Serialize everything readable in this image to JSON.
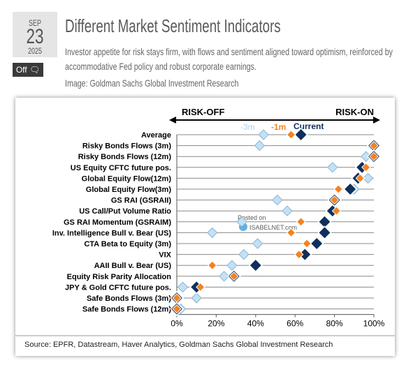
{
  "post": {
    "date": {
      "month": "SEP",
      "day": "23",
      "year": "2025"
    },
    "comments_badge": "Off",
    "comment_icon": "speech-bubbles-icon",
    "title": "Different Market Sentiment Indicators",
    "description": "Investor appetite for risk stays firm, with flows and sentiment aligned toward optimism, reinforced by accommodative Fed policy and robust corporate earnings.",
    "image_credit": "Image: Goldman Sachs Global Investment Research"
  },
  "chart_data": {
    "type": "scatter",
    "header_left": "RISK-OFF",
    "header_right": "RISK-ON",
    "watermark": [
      "Posted on",
      "ISABELNET.com"
    ],
    "source": "Source: EPFR, Datastream, Haver Analytics, Goldman Sachs Global Investment Research",
    "xlim": [
      0,
      100
    ],
    "xticks": [
      "0%",
      "20%",
      "40%",
      "60%",
      "80%",
      "100%"
    ],
    "colors": {
      "current": "#0f2f5c",
      "m1": "#f5821f",
      "m3": "#c2e1f7"
    },
    "legend": {
      "m3": "-3m",
      "m1": "-1m",
      "current": "Current"
    },
    "categories": [
      "Average",
      "Risky Bonds Flows (3m)",
      "Risky Bonds Flows (12m)",
      "US Equity CFTC future pos.",
      "Global Equity Flow(12m)",
      "Global Equity Flow(3m)",
      "GS RAI (GSRAII)",
      "US Call/Put Volume Ratio",
      "GS RAI Momentum (GSRAIM)",
      "Inv. Intelligence Bull v. Bear (US)",
      "CTA Beta to Equity (3m)",
      "VIX",
      "AAII Bull v. Bear (US)",
      "Equity Risk Parity Allocation",
      "JPY & Gold CFTC future pos.",
      "Safe Bonds Flows (3m)",
      "Safe Bonds Flows (12m)"
    ],
    "series": [
      {
        "name": "-3m",
        "key": "m3",
        "values": [
          44,
          42,
          96,
          79,
          97,
          90,
          51,
          56,
          33,
          18,
          41,
          34,
          28,
          24,
          3,
          10,
          2
        ]
      },
      {
        "name": "Current",
        "key": "current",
        "values": [
          63,
          100,
          100,
          94,
          92,
          88,
          80,
          79,
          75,
          75,
          71,
          65,
          40,
          29,
          10,
          0,
          0
        ]
      },
      {
        "name": "-1m",
        "key": "m1",
        "values": [
          58,
          100,
          100,
          96,
          93,
          82,
          80,
          81,
          63,
          58,
          66,
          62,
          18,
          29,
          12,
          0,
          0
        ]
      }
    ]
  }
}
